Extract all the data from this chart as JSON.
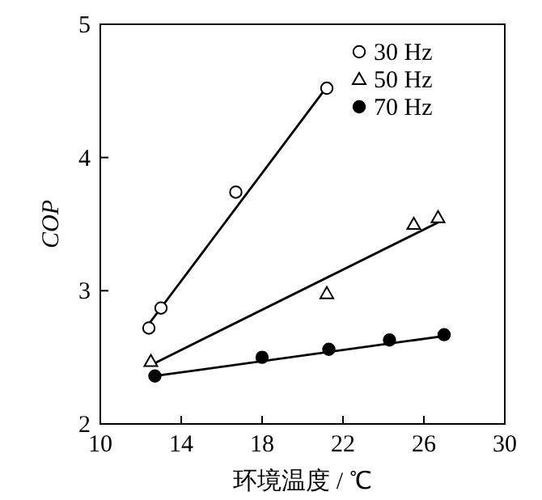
{
  "chart_data": {
    "type": "scatter",
    "xlabel": "环境温度 / ℃",
    "ylabel": "COP",
    "xlim": [
      10,
      30
    ],
    "ylim": [
      2,
      5
    ],
    "xticks": [
      10,
      14,
      18,
      22,
      26,
      30
    ],
    "yticks": [
      2,
      3,
      4,
      5
    ],
    "legend": "top right",
    "grid": false,
    "series": [
      {
        "name": "30 Hz",
        "color": "#ffffff",
        "marker": "circle",
        "x": [
          12.4,
          13.0,
          16.7,
          21.2
        ],
        "values": [
          2.72,
          2.87,
          3.74,
          4.52
        ]
      },
      {
        "name": "50 Hz",
        "color": "#ffffff",
        "marker": "triangle",
        "x": [
          12.5,
          21.2,
          25.5,
          26.7
        ],
        "values": [
          2.47,
          2.98,
          3.5,
          3.55
        ]
      },
      {
        "name": "70 Hz",
        "color": "#000000",
        "marker": "circle",
        "x": [
          12.7,
          18.0,
          21.3,
          24.3,
          27.0
        ],
        "values": [
          2.36,
          2.5,
          2.56,
          2.63,
          2.67
        ]
      },
      {
        "type": "line",
        "color": "#000000",
        "marker": "none",
        "x": [
          12.4,
          21.2
        ],
        "values": [
          2.75,
          4.53
        ]
      },
      {
        "type": "line",
        "color": "#000000",
        "marker": "none",
        "x": [
          12.6,
          26.8
        ],
        "values": [
          2.45,
          3.52
        ]
      },
      {
        "type": "line",
        "color": "#000000",
        "marker": "none",
        "x": [
          12.7,
          27.0
        ],
        "values": [
          2.36,
          2.66
        ]
      }
    ]
  }
}
